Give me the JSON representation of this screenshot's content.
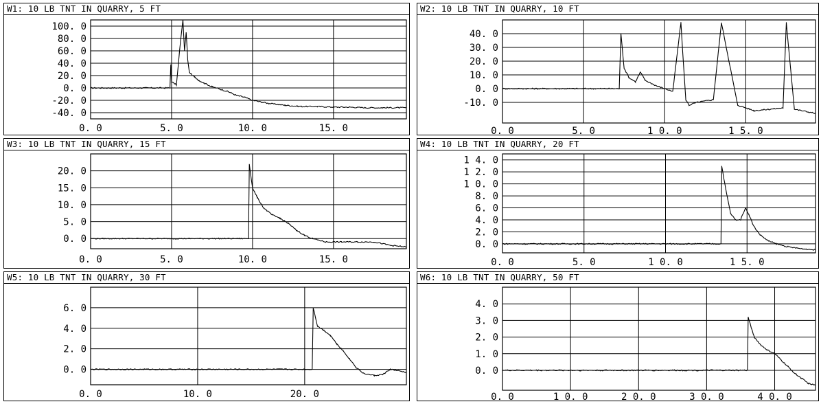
{
  "chart_data": [
    {
      "type": "line",
      "title": "W1: 10 LB TNT IN QUARRY, 5 FT",
      "xlim": [
        0,
        19.5
      ],
      "ylim": [
        -50,
        110
      ],
      "xticks": [
        0,
        5,
        10,
        15
      ],
      "xtick_labels": [
        "0. 0",
        "5. 0",
        "10. 0",
        "15. 0"
      ],
      "yticks": [
        100,
        80,
        60,
        40,
        20,
        0,
        -20,
        -40
      ],
      "ytick_labels": [
        "100. 0",
        "80. 0",
        "60. 0",
        "40. 0",
        "20. 0",
        "0. 0",
        "-20. 0",
        "-40. 0"
      ],
      "x": [
        0,
        4.9,
        4.95,
        5.0,
        5.3,
        5.55,
        5.7,
        5.8,
        5.9,
        6.0,
        6.1,
        6.4,
        6.7,
        7.0,
        7.5,
        8.0,
        8.5,
        9.0,
        9.5,
        10.0,
        11.0,
        12.0,
        13.0,
        14.0,
        15.0,
        16.0,
        17.0,
        18.0,
        19.5
      ],
      "values": [
        0,
        0,
        38,
        10,
        5,
        75,
        110,
        60,
        90,
        45,
        25,
        18,
        12,
        8,
        2,
        -2,
        -6,
        -12,
        -15,
        -20,
        -25,
        -28,
        -30,
        -30,
        -31,
        -31,
        -32,
        -32,
        -32
      ],
      "grid": true
    },
    {
      "type": "line",
      "title": "W2: 10 LB TNT IN QUARRY, 10 FT",
      "xlim": [
        0,
        19.3
      ],
      "ylim": [
        -25,
        50
      ],
      "xticks": [
        0,
        5,
        10,
        15
      ],
      "xtick_labels": [
        "0. 0",
        "5. 0",
        "1 0. 0",
        "1 5. 0"
      ],
      "yticks": [
        40,
        30,
        20,
        10,
        0,
        -10
      ],
      "ytick_labels": [
        "40. 0",
        "30. 0",
        "20. 0",
        "10. 0",
        "0. 0",
        "-10. 0"
      ],
      "x": [
        0,
        7.2,
        7.3,
        7.5,
        7.8,
        8.2,
        8.5,
        8.8,
        9.5,
        10.5,
        11.0,
        11.3,
        11.5,
        12.0,
        13.0,
        13.5,
        14.5,
        15.5,
        16.5,
        17.3,
        17.5,
        18.0,
        19.3
      ],
      "values": [
        0,
        0,
        40,
        15,
        8,
        5,
        12,
        6,
        2,
        -2,
        48,
        -8,
        -12,
        -10,
        -8,
        48,
        -12,
        -16,
        -15,
        -14,
        48,
        -15,
        -18
      ],
      "grid": true
    },
    {
      "type": "line",
      "title": "W3: 10 LB TNT IN QUARRY, 15 FT",
      "xlim": [
        0,
        19.5
      ],
      "ylim": [
        -3,
        25
      ],
      "xticks": [
        0,
        5,
        10,
        15
      ],
      "xtick_labels": [
        "0. 0",
        "5. 0",
        "10. 0",
        "15. 0"
      ],
      "yticks": [
        20,
        15,
        10,
        5,
        0
      ],
      "ytick_labels": [
        "20. 0",
        "15. 0",
        "10. 0",
        "5. 0",
        "0. 0"
      ],
      "x": [
        0,
        9.75,
        9.8,
        10.0,
        10.3,
        10.7,
        11.2,
        11.7,
        12.2,
        12.7,
        13.2,
        13.7,
        14.5,
        15.5,
        16.5,
        17.5,
        18.5,
        19.5
      ],
      "values": [
        0,
        0,
        22,
        15,
        12,
        9,
        7,
        6,
        4.5,
        2.5,
        1,
        0,
        -1,
        -1,
        -1,
        -1,
        -2,
        -2.5
      ],
      "grid": true
    },
    {
      "type": "line",
      "title": "W4: 10 LB TNT IN QUARRY, 20 FT",
      "xlim": [
        0,
        19.2
      ],
      "ylim": [
        -1.5,
        15
      ],
      "xticks": [
        0,
        5,
        10,
        15
      ],
      "xtick_labels": [
        "0. 0",
        "5. 0",
        "1 0. 0",
        "1 5. 0"
      ],
      "yticks": [
        14,
        12,
        10,
        8,
        6,
        4,
        2,
        0
      ],
      "ytick_labels": [
        "1 4. 0",
        "1 2. 0",
        "1 0. 0",
        "8. 0",
        "6. 0",
        "4. 0",
        "2. 0",
        "0. 0"
      ],
      "x": [
        0,
        13.4,
        13.45,
        13.7,
        14.0,
        14.3,
        14.6,
        14.9,
        15.1,
        15.4,
        15.8,
        16.3,
        16.8,
        17.5,
        18.3,
        19.2
      ],
      "values": [
        0,
        0,
        13,
        9,
        5,
        4,
        4,
        6,
        5,
        3,
        1.5,
        0.5,
        0,
        -0.5,
        -0.8,
        -1
      ],
      "grid": true
    },
    {
      "type": "line",
      "title": "W5: 10 LB TNT IN QUARRY, 30 FT",
      "xlim": [
        0,
        29.5
      ],
      "ylim": [
        -1.5,
        8
      ],
      "xticks": [
        0,
        10,
        20
      ],
      "xtick_labels": [
        "0. 0",
        "10. 0",
        "20. 0"
      ],
      "yticks": [
        6,
        4,
        2,
        0
      ],
      "ytick_labels": [
        "6. 0",
        "4. 0",
        "2. 0",
        "0. 0"
      ],
      "x": [
        0,
        20.7,
        20.8,
        21.2,
        21.8,
        22.4,
        23.0,
        23.6,
        24.2,
        24.8,
        25.5,
        26.5,
        27.3,
        28.0,
        29.5
      ],
      "values": [
        0,
        0,
        6,
        4.2,
        3.8,
        3.3,
        2.5,
        1.8,
        1.0,
        0.2,
        -0.4,
        -0.6,
        -0.5,
        0,
        -0.3
      ],
      "grid": true
    },
    {
      "type": "line",
      "title": "W6: 10 LB TNT IN QUARRY, 50 FT",
      "xlim": [
        0,
        46
      ],
      "ylim": [
        -1.2,
        5
      ],
      "xticks": [
        0,
        10,
        20,
        30,
        40
      ],
      "xtick_labels": [
        "0. 0",
        "1 0. 0",
        "2 0. 0",
        "3 0. 0",
        "4 0. 0"
      ],
      "yticks": [
        4,
        3,
        2,
        1,
        0
      ],
      "ytick_labels": [
        "4. 0",
        "3. 0",
        "2. 0",
        "1. 0",
        "0. 0"
      ],
      "x": [
        0,
        36.0,
        36.1,
        37.0,
        38.0,
        39.0,
        40.0,
        41.0,
        42.0,
        43.0,
        44.0,
        45.0,
        46.0
      ],
      "values": [
        0,
        0,
        3.2,
        2.0,
        1.5,
        1.2,
        1.0,
        0.6,
        0.2,
        -0.2,
        -0.5,
        -0.8,
        -0.9
      ],
      "grid": true
    }
  ]
}
